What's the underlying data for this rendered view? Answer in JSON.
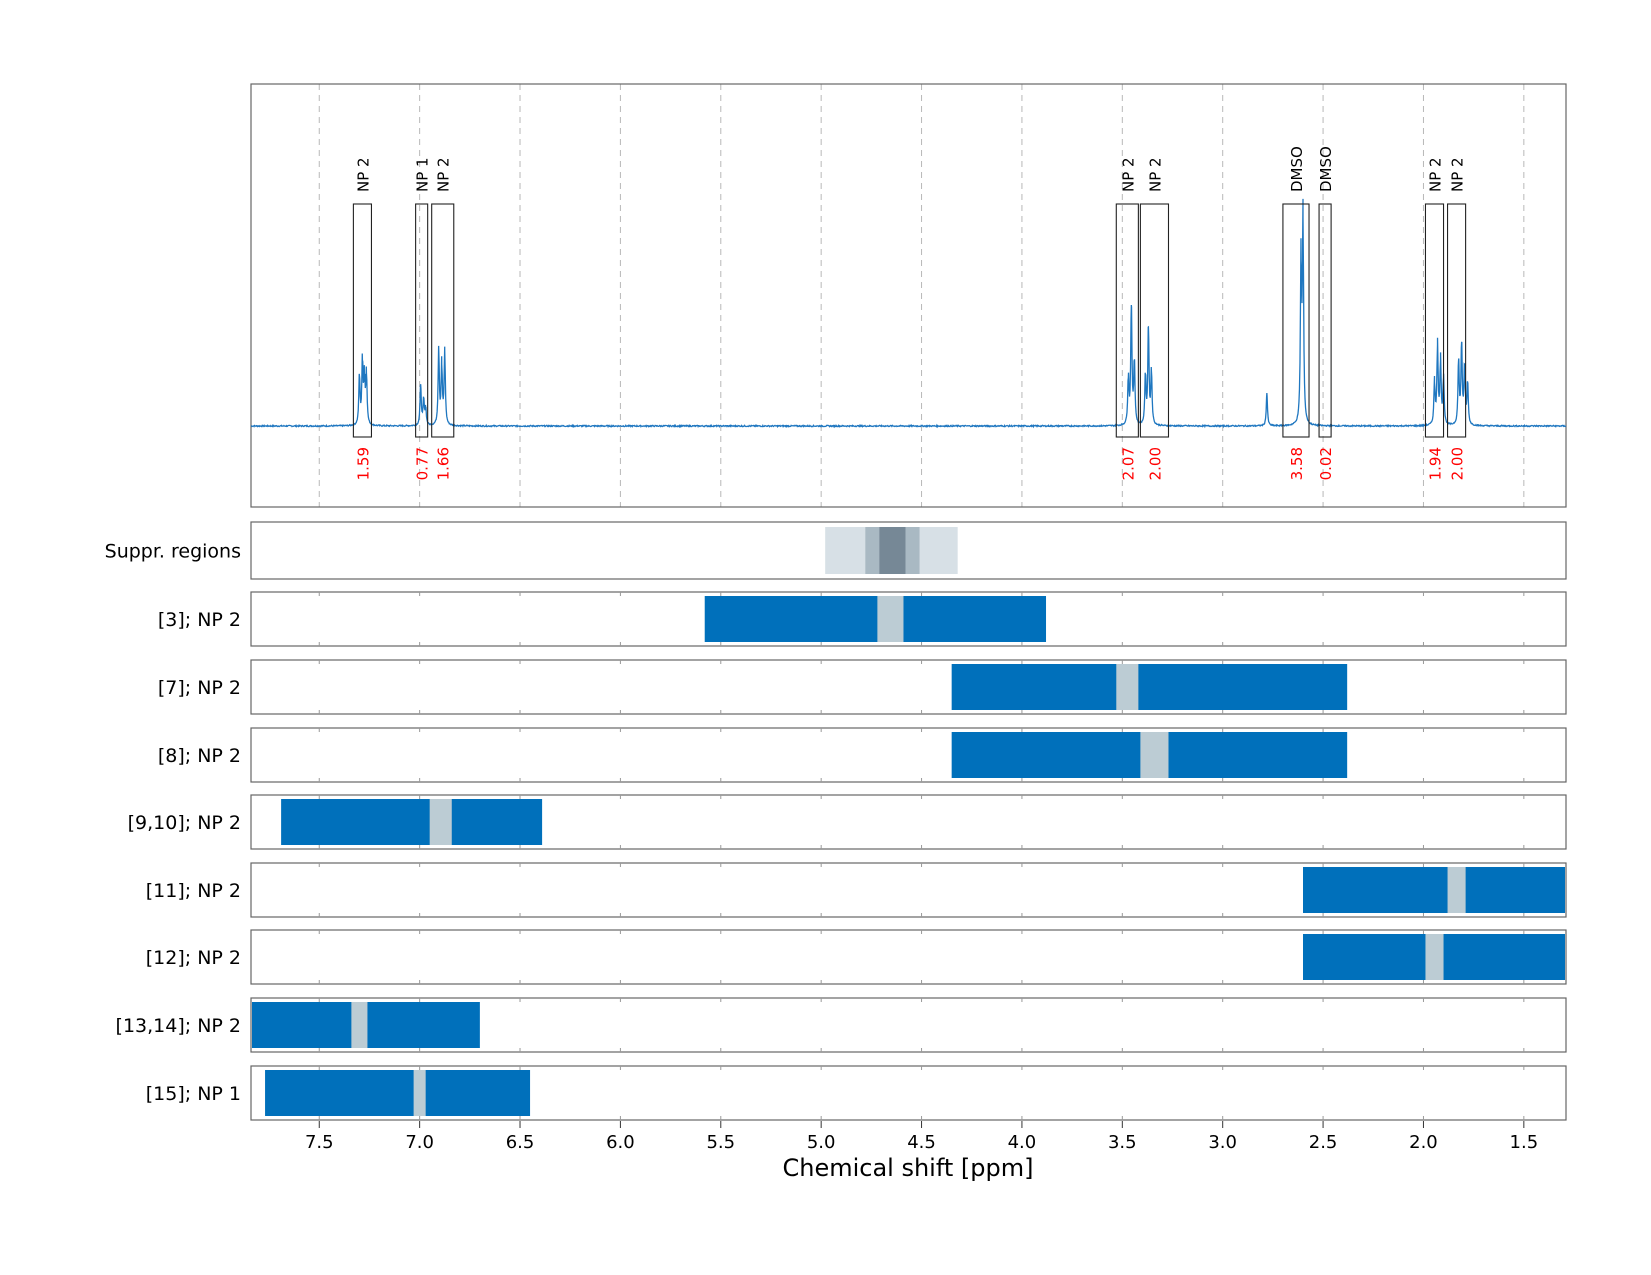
{
  "chart_data": {
    "type": "nmr_spectrum_with_region_bars",
    "xlabel": "Chemical shift [ppm]",
    "xlim": [
      7.84,
      1.29
    ],
    "xticks": [
      "7.5",
      "7.0",
      "6.5",
      "6.0",
      "5.5",
      "5.0",
      "4.5",
      "4.0",
      "3.5",
      "3.0",
      "2.5",
      "2.0",
      "1.5"
    ],
    "tick_values": [
      7.5,
      7.0,
      6.5,
      6.0,
      5.5,
      5.0,
      4.5,
      4.0,
      3.5,
      3.0,
      2.5,
      2.0,
      1.5
    ],
    "grid": "vertical dashed at ticks",
    "spectrum": {
      "baseline": 0,
      "peaks": [
        {
          "x": 7.3,
          "h": 0.23
        },
        {
          "x": 7.285,
          "h": 0.3
        },
        {
          "x": 7.275,
          "h": 0.22
        },
        {
          "x": 7.265,
          "h": 0.24
        },
        {
          "x": 6.995,
          "h": 0.19
        },
        {
          "x": 6.98,
          "h": 0.12
        },
        {
          "x": 6.97,
          "h": 0.08
        },
        {
          "x": 6.905,
          "h": 0.35
        },
        {
          "x": 6.89,
          "h": 0.28
        },
        {
          "x": 6.875,
          "h": 0.34
        },
        {
          "x": 3.47,
          "h": 0.22
        },
        {
          "x": 3.455,
          "h": 0.55
        },
        {
          "x": 3.44,
          "h": 0.3
        },
        {
          "x": 3.385,
          "h": 0.23
        },
        {
          "x": 3.37,
          "h": 0.45
        },
        {
          "x": 3.355,
          "h": 0.25
        },
        {
          "x": 2.78,
          "h": 0.15
        },
        {
          "x": 2.61,
          "h": 0.75
        },
        {
          "x": 2.6,
          "h": 0.95
        },
        {
          "x": 1.945,
          "h": 0.2
        },
        {
          "x": 1.93,
          "h": 0.37
        },
        {
          "x": 1.915,
          "h": 0.3
        },
        {
          "x": 1.9,
          "h": 0.22
        },
        {
          "x": 1.825,
          "h": 0.3
        },
        {
          "x": 1.81,
          "h": 0.38
        },
        {
          "x": 1.795,
          "h": 0.28
        },
        {
          "x": 1.78,
          "h": 0.2
        }
      ]
    },
    "annotations": [
      {
        "label": "NP 2",
        "value": "1.59",
        "x1": 7.33,
        "x2": 7.24
      },
      {
        "label": "NP 1",
        "value": "0.77",
        "x1": 7.02,
        "x2": 6.96
      },
      {
        "label": "NP 2",
        "value": "1.66",
        "x1": 6.94,
        "x2": 6.83
      },
      {
        "label": "NP 2",
        "value": "2.07",
        "x1": 3.53,
        "x2": 3.42
      },
      {
        "label": "NP 2",
        "value": "2.00",
        "x1": 3.41,
        "x2": 3.27
      },
      {
        "label": "DMSO",
        "value": "3.58",
        "x1": 2.7,
        "x2": 2.57
      },
      {
        "label": "DMSO",
        "value": "0.02",
        "x1": 2.52,
        "x2": 2.46
      },
      {
        "label": "NP 2",
        "value": "1.94",
        "x1": 1.99,
        "x2": 1.9
      },
      {
        "label": "NP 2",
        "value": "2.00",
        "x1": 1.88,
        "x2": 1.79
      }
    ],
    "suppression_panel": {
      "label": "Suppr. regions",
      "regions": [
        {
          "x1": 4.98,
          "x2": 4.32,
          "shade": "light"
        },
        {
          "x1": 4.78,
          "x2": 4.51,
          "shade": "medium"
        },
        {
          "x1": 4.71,
          "x2": 4.58,
          "shade": "dark"
        }
      ]
    },
    "rows": [
      {
        "label": "[3]; NP 2",
        "x1": 5.58,
        "x2": 3.88,
        "g1": 4.72,
        "g2": 4.59
      },
      {
        "label": "[7]; NP 2",
        "x1": 4.35,
        "x2": 2.38,
        "g1": 3.53,
        "g2": 3.42
      },
      {
        "label": "[8]; NP 2",
        "x1": 4.35,
        "x2": 2.38,
        "g1": 3.41,
        "g2": 3.27
      },
      {
        "label": "[9,10]; NP 2",
        "x1": 7.69,
        "x2": 6.39,
        "g1": 6.95,
        "g2": 6.84
      },
      {
        "label": "[11]; NP 2",
        "x1": 2.6,
        "x2": 1.29,
        "g1": 1.88,
        "g2": 1.79
      },
      {
        "label": "[12]; NP 2",
        "x1": 2.6,
        "x2": 1.29,
        "g1": 1.99,
        "g2": 1.9
      },
      {
        "label": "[13,14]; NP 2",
        "x1": 7.84,
        "x2": 6.7,
        "g1": 7.34,
        "g2": 7.26
      },
      {
        "label": "[15]; NP 1",
        "x1": 7.77,
        "x2": 6.45,
        "g1": 7.03,
        "g2": 6.97
      }
    ]
  },
  "colors": {
    "spectrum": "#1f77c0",
    "bar": "#0070bb",
    "gap": "#bcccd4",
    "annotation_value": "#ff0000",
    "suppr_light": "#d7e0e6",
    "suppr_medium": "#a9b9c3",
    "suppr_dark": "#768896",
    "frame": "#666666",
    "grid": "#b8b8b8"
  }
}
